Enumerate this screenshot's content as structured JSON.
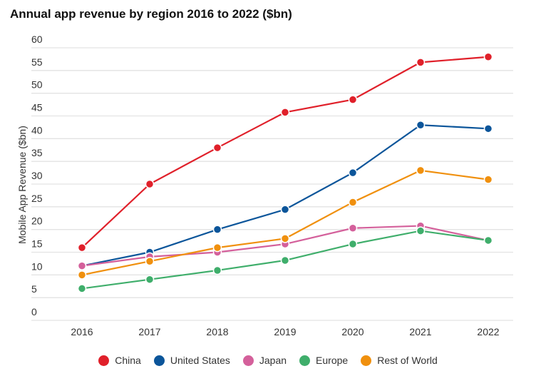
{
  "chart_data": {
    "type": "line",
    "title": "Annual app revenue by region 2016 to 2022 ($bn)",
    "xlabel": "",
    "ylabel": "Mobile App Revenue ($bn)",
    "ylim": [
      0,
      60
    ],
    "yticks": [
      0,
      5,
      10,
      15,
      20,
      25,
      30,
      35,
      40,
      45,
      50,
      55,
      60
    ],
    "categories": [
      "2016",
      "2017",
      "2018",
      "2019",
      "2020",
      "2021",
      "2022"
    ],
    "grid": true,
    "legend_position": "bottom",
    "series": [
      {
        "name": "China",
        "color": "#e0202a",
        "values": [
          16,
          30,
          38,
          45.8,
          48.6,
          56.8,
          58
        ]
      },
      {
        "name": "United States",
        "color": "#0b559a",
        "values": [
          12,
          15,
          20,
          24.4,
          32.5,
          43,
          42.2
        ]
      },
      {
        "name": "Japan",
        "color": "#d4609b",
        "values": [
          12,
          14,
          15,
          16.8,
          20.3,
          20.8,
          17.6
        ]
      },
      {
        "name": "Europe",
        "color": "#3fae6b",
        "values": [
          7,
          9,
          11,
          13.2,
          16.8,
          19.7,
          17.6
        ]
      },
      {
        "name": "Rest of World",
        "color": "#f0900e",
        "values": [
          10,
          13,
          16,
          18,
          26,
          33,
          31
        ]
      }
    ]
  }
}
